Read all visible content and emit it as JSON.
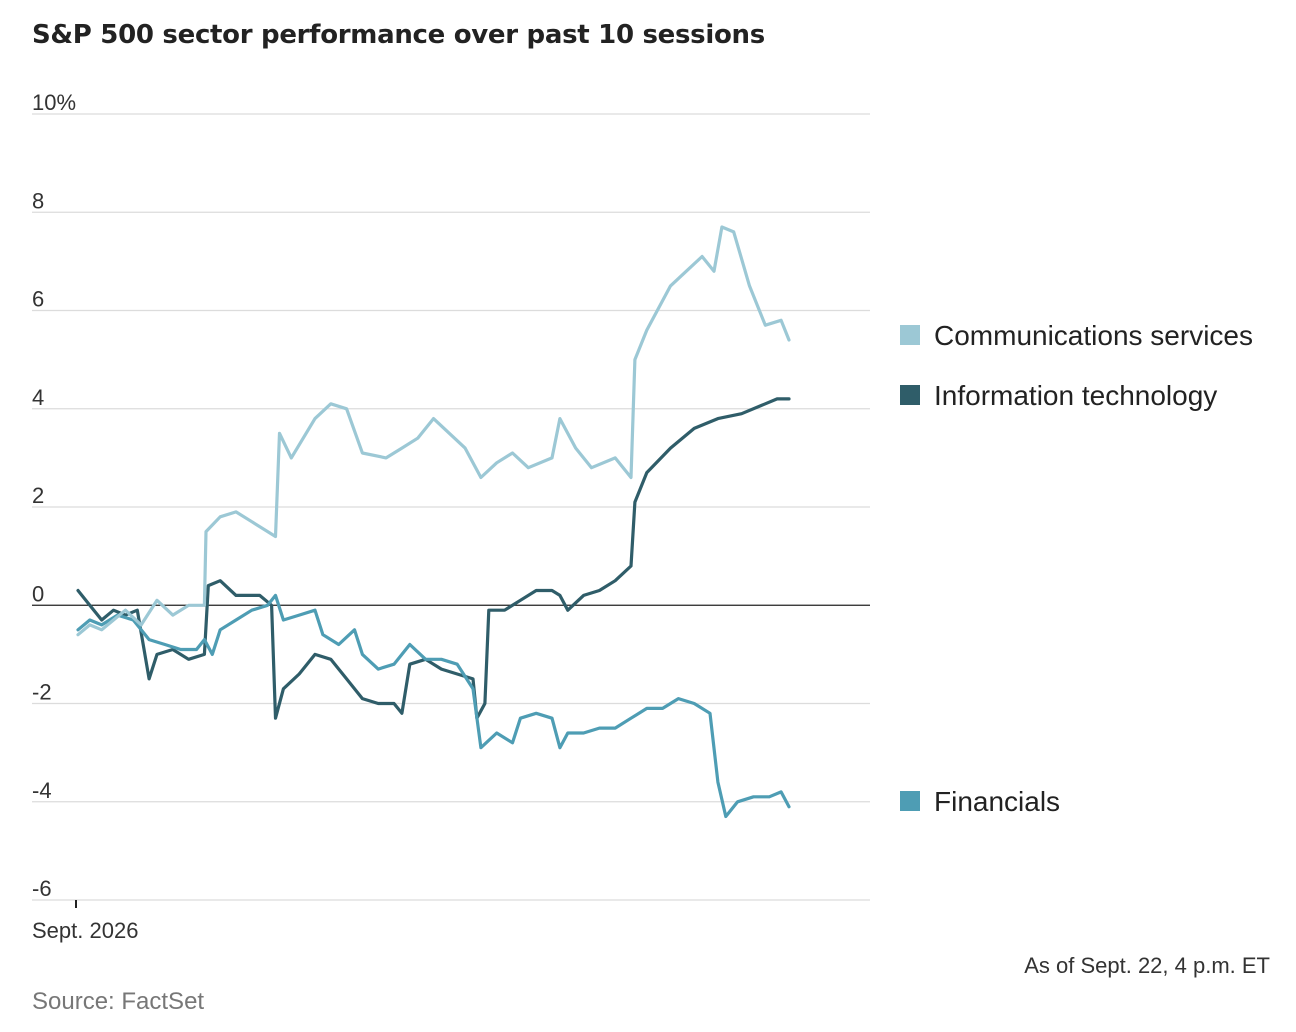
{
  "title": "S&P 500 sector performance over past 10 sessions",
  "footnote": "As of Sept. 22, 4 p.m. ET",
  "source": "Source: FactSet",
  "chart_data": {
    "type": "line",
    "title": "S&P 500 sector performance over past 10 sessions",
    "xlabel": "",
    "ylabel": "",
    "x_tick_labels": [
      "Sept. 2026"
    ],
    "y_ticks": [
      {
        "value": 10,
        "label": "10%"
      },
      {
        "value": 8,
        "label": "8"
      },
      {
        "value": 6,
        "label": "6"
      },
      {
        "value": 4,
        "label": "4"
      },
      {
        "value": 2,
        "label": "2"
      },
      {
        "value": 0,
        "label": "0"
      },
      {
        "value": -2,
        "label": "-2"
      },
      {
        "value": -4,
        "label": "-4"
      },
      {
        "value": -6,
        "label": "-6"
      }
    ],
    "ylim": [
      -6,
      10
    ],
    "xlim": [
      0,
      10
    ],
    "grid": true,
    "legend": "right, labels at series ends",
    "series": [
      {
        "name": "Communications services",
        "color": "#9cc8d5",
        "points": [
          [
            0,
            -0.6
          ],
          [
            0.15,
            -0.4
          ],
          [
            0.3,
            -0.5
          ],
          [
            0.45,
            -0.3
          ],
          [
            0.6,
            -0.1
          ],
          [
            0.8,
            -0.4
          ],
          [
            1.0,
            0.1
          ],
          [
            1.2,
            -0.2
          ],
          [
            1.4,
            0.0
          ],
          [
            1.6,
            0.0
          ],
          [
            1.62,
            1.5
          ],
          [
            1.8,
            1.8
          ],
          [
            2.0,
            1.9
          ],
          [
            2.2,
            1.7
          ],
          [
            2.5,
            1.4
          ],
          [
            2.55,
            3.5
          ],
          [
            2.7,
            3.0
          ],
          [
            3.0,
            3.8
          ],
          [
            3.2,
            4.1
          ],
          [
            3.4,
            4.0
          ],
          [
            3.6,
            3.1
          ],
          [
            3.9,
            3.0
          ],
          [
            4.1,
            3.2
          ],
          [
            4.3,
            3.4
          ],
          [
            4.5,
            3.8
          ],
          [
            4.7,
            3.5
          ],
          [
            4.9,
            3.2
          ],
          [
            5.1,
            2.6
          ],
          [
            5.3,
            2.9
          ],
          [
            5.5,
            3.1
          ],
          [
            5.7,
            2.8
          ],
          [
            6.0,
            3.0
          ],
          [
            6.1,
            3.8
          ],
          [
            6.3,
            3.2
          ],
          [
            6.5,
            2.8
          ],
          [
            6.8,
            3.0
          ],
          [
            7.0,
            2.6
          ],
          [
            7.05,
            5.0
          ],
          [
            7.2,
            5.6
          ],
          [
            7.5,
            6.5
          ],
          [
            7.7,
            6.8
          ],
          [
            7.9,
            7.1
          ],
          [
            8.05,
            6.8
          ],
          [
            8.15,
            7.7
          ],
          [
            8.3,
            7.6
          ],
          [
            8.5,
            6.5
          ],
          [
            8.7,
            5.7
          ],
          [
            8.9,
            5.8
          ],
          [
            9.0,
            5.4
          ]
        ]
      },
      {
        "name": "Information technology",
        "color": "#2f5d69",
        "points": [
          [
            0,
            0.3
          ],
          [
            0.15,
            0.0
          ],
          [
            0.3,
            -0.3
          ],
          [
            0.45,
            -0.1
          ],
          [
            0.6,
            -0.2
          ],
          [
            0.75,
            -0.1
          ],
          [
            0.9,
            -1.5
          ],
          [
            1.0,
            -1.0
          ],
          [
            1.2,
            -0.9
          ],
          [
            1.4,
            -1.1
          ],
          [
            1.6,
            -1.0
          ],
          [
            1.65,
            0.4
          ],
          [
            1.8,
            0.5
          ],
          [
            2.0,
            0.2
          ],
          [
            2.3,
            0.2
          ],
          [
            2.45,
            0.0
          ],
          [
            2.5,
            -2.3
          ],
          [
            2.6,
            -1.7
          ],
          [
            2.8,
            -1.4
          ],
          [
            3.0,
            -1.0
          ],
          [
            3.2,
            -1.1
          ],
          [
            3.4,
            -1.5
          ],
          [
            3.6,
            -1.9
          ],
          [
            3.8,
            -2.0
          ],
          [
            4.0,
            -2.0
          ],
          [
            4.1,
            -2.2
          ],
          [
            4.2,
            -1.2
          ],
          [
            4.4,
            -1.1
          ],
          [
            4.6,
            -1.3
          ],
          [
            4.8,
            -1.4
          ],
          [
            5.0,
            -1.5
          ],
          [
            5.05,
            -2.3
          ],
          [
            5.15,
            -2.0
          ],
          [
            5.2,
            -0.1
          ],
          [
            5.4,
            -0.1
          ],
          [
            5.6,
            0.1
          ],
          [
            5.8,
            0.3
          ],
          [
            6.0,
            0.3
          ],
          [
            6.1,
            0.2
          ],
          [
            6.2,
            -0.1
          ],
          [
            6.4,
            0.2
          ],
          [
            6.6,
            0.3
          ],
          [
            6.8,
            0.5
          ],
          [
            7.0,
            0.8
          ],
          [
            7.05,
            2.1
          ],
          [
            7.2,
            2.7
          ],
          [
            7.5,
            3.2
          ],
          [
            7.8,
            3.6
          ],
          [
            8.1,
            3.8
          ],
          [
            8.4,
            3.9
          ],
          [
            8.7,
            4.1
          ],
          [
            8.85,
            4.2
          ],
          [
            9.0,
            4.2
          ]
        ]
      },
      {
        "name": "Financials",
        "color": "#4e9db4",
        "points": [
          [
            0,
            -0.5
          ],
          [
            0.15,
            -0.3
          ],
          [
            0.3,
            -0.4
          ],
          [
            0.5,
            -0.2
          ],
          [
            0.7,
            -0.3
          ],
          [
            0.9,
            -0.7
          ],
          [
            1.1,
            -0.8
          ],
          [
            1.3,
            -0.9
          ],
          [
            1.5,
            -0.9
          ],
          [
            1.6,
            -0.7
          ],
          [
            1.7,
            -1.0
          ],
          [
            1.8,
            -0.5
          ],
          [
            2.0,
            -0.3
          ],
          [
            2.2,
            -0.1
          ],
          [
            2.4,
            0.0
          ],
          [
            2.5,
            0.2
          ],
          [
            2.6,
            -0.3
          ],
          [
            2.8,
            -0.2
          ],
          [
            3.0,
            -0.1
          ],
          [
            3.1,
            -0.6
          ],
          [
            3.3,
            -0.8
          ],
          [
            3.5,
            -0.5
          ],
          [
            3.6,
            -1.0
          ],
          [
            3.8,
            -1.3
          ],
          [
            4.0,
            -1.2
          ],
          [
            4.2,
            -0.8
          ],
          [
            4.4,
            -1.1
          ],
          [
            4.6,
            -1.1
          ],
          [
            4.8,
            -1.2
          ],
          [
            5.0,
            -1.7
          ],
          [
            5.1,
            -2.9
          ],
          [
            5.3,
            -2.6
          ],
          [
            5.5,
            -2.8
          ],
          [
            5.6,
            -2.3
          ],
          [
            5.8,
            -2.2
          ],
          [
            6.0,
            -2.3
          ],
          [
            6.1,
            -2.9
          ],
          [
            6.2,
            -2.6
          ],
          [
            6.4,
            -2.6
          ],
          [
            6.6,
            -2.5
          ],
          [
            6.8,
            -2.5
          ],
          [
            7.0,
            -2.3
          ],
          [
            7.2,
            -2.1
          ],
          [
            7.4,
            -2.1
          ],
          [
            7.6,
            -1.9
          ],
          [
            7.8,
            -2.0
          ],
          [
            8.0,
            -2.2
          ],
          [
            8.1,
            -3.6
          ],
          [
            8.2,
            -4.3
          ],
          [
            8.35,
            -4.0
          ],
          [
            8.55,
            -3.9
          ],
          [
            8.75,
            -3.9
          ],
          [
            8.9,
            -3.8
          ],
          [
            9.0,
            -4.1
          ]
        ]
      }
    ]
  }
}
